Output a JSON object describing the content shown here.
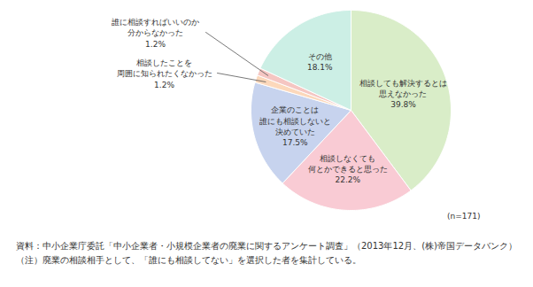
{
  "chart_data": {
    "type": "pie",
    "categories": [
      "相談しても解決するとは\n思えなかった",
      "相談しなくても\n何とかできると思った",
      "企業のことは\n誰にも相談しないと\n決めていた",
      "相談したことを\n周囲に知られたくなかった",
      "誰に相談すればいいのか\n分からなかった",
      "その他"
    ],
    "values": [
      39.8,
      22.2,
      17.5,
      1.2,
      1.2,
      18.1
    ],
    "value_labels": [
      "39.8%",
      "22.2%",
      "17.5%",
      "1.2%",
      "1.2%",
      "18.1%"
    ],
    "colors": [
      "#d9edc8",
      "#f9cbd4",
      "#c7d3ee",
      "#fcd8bb",
      "#f5c6c2",
      "#ccefe5"
    ],
    "data_labels": true,
    "annotations": [
      "(n=171)"
    ],
    "source": "資料：中小企業庁委託「中小企業者・小規模企業者の廃業に関するアンケート調査」（2013年12月、(株)帝国データバンク）",
    "note": "（注）廃業の相談相手として、「誰にも相談してない」を選択した者を集計している。"
  }
}
